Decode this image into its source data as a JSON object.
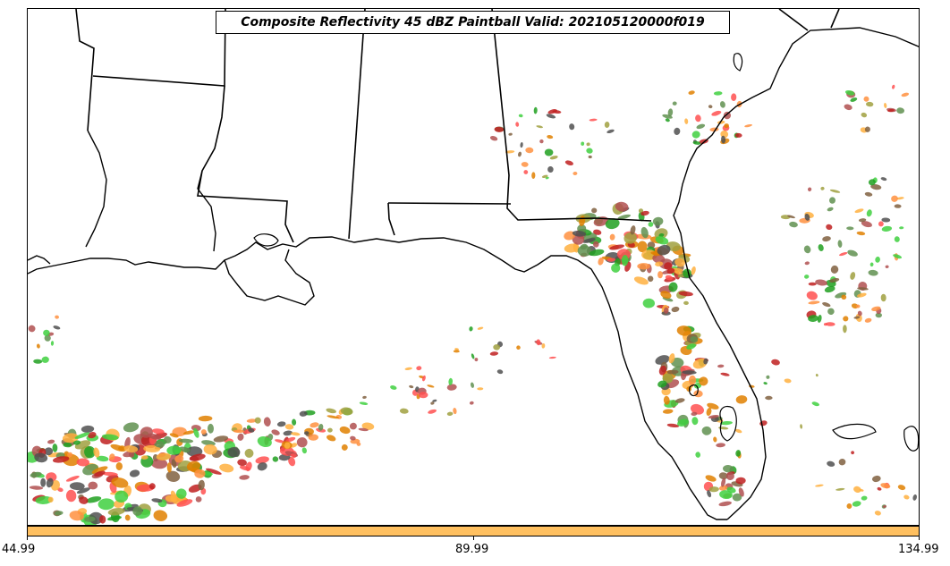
{
  "title": "Composite Reflectivity 45 dBZ Paintball Valid: 202105120000f019",
  "colorbar": {
    "color": "#ffc060",
    "ticks": [
      "44.99",
      "89.99",
      "134.99"
    ]
  },
  "paintball_colors": [
    "#ff5050",
    "#c02020",
    "#ff9040",
    "#ffb040",
    "#e08000",
    "#40d040",
    "#20a020",
    "#609050",
    "#a0a040",
    "#b05050",
    "#505050",
    "#806040"
  ],
  "map_features": [
    "coastline",
    "state-borders",
    "lakes"
  ]
}
